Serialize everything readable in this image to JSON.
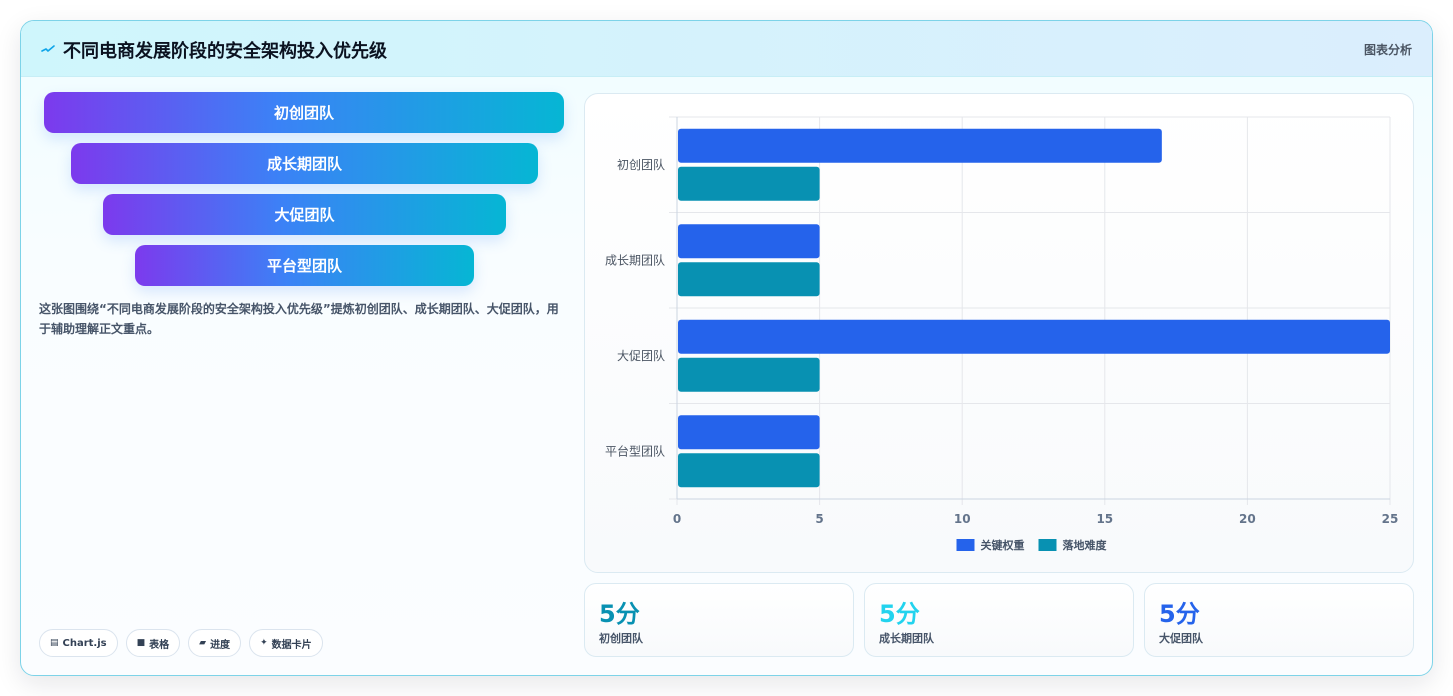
{
  "header": {
    "title": "不同电商发展阶段的安全架构投入优先级",
    "tag": "图表分析"
  },
  "stages": [
    {
      "label": "初创团队"
    },
    {
      "label": "成长期团队"
    },
    {
      "label": "大促团队"
    },
    {
      "label": "平台型团队"
    }
  ],
  "description": "这张图围绕“不同电商发展阶段的安全架构投入优先级”提炼初创团队、成长期团队、大促团队，用于辅助理解正文重点。",
  "chips": [
    {
      "icon": "chart-icon",
      "glyph": "▤",
      "label": "Chart.js"
    },
    {
      "icon": "table-icon",
      "glyph": "■",
      "label": "表格"
    },
    {
      "icon": "progress-icon",
      "glyph": "▰",
      "label": "进度"
    },
    {
      "icon": "sparkle-icon",
      "glyph": "✦",
      "label": "数据卡片"
    }
  ],
  "chart_data": {
    "type": "bar",
    "orientation": "horizontal",
    "categories": [
      "初创团队",
      "成长期团队",
      "大促团队",
      "平台型团队"
    ],
    "series": [
      {
        "name": "关键权重",
        "values": [
          17,
          5,
          25,
          5
        ],
        "color": "#2563eb"
      },
      {
        "name": "落地难度",
        "values": [
          5,
          5,
          5,
          5
        ],
        "color": "#0891b2"
      }
    ],
    "xlim": [
      0,
      25
    ],
    "xticks": [
      "0",
      "5",
      "10",
      "15",
      "20",
      "25"
    ],
    "grid": true,
    "legend": "bottom"
  },
  "stats": [
    {
      "value": "5分",
      "label": "初创团队",
      "color": "#0891b2"
    },
    {
      "value": "5分",
      "label": "成长期团队",
      "color": "#22d3ee"
    },
    {
      "value": "5分",
      "label": "大促团队",
      "color": "#2563eb"
    }
  ]
}
